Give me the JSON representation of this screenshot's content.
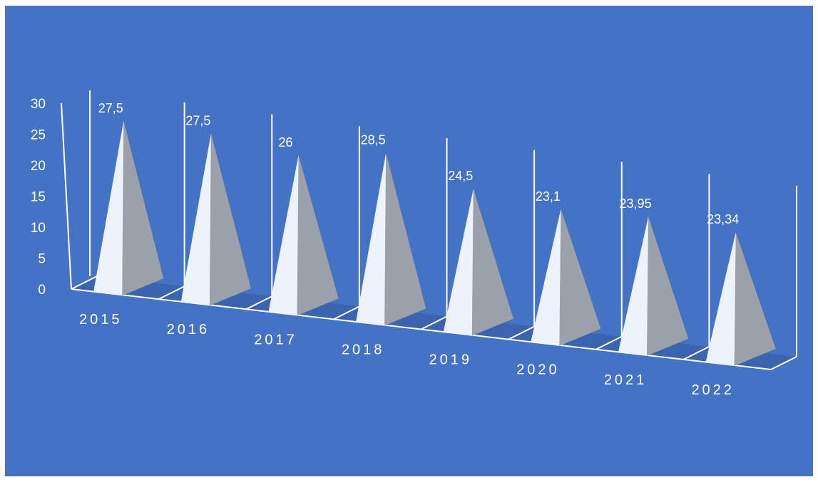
{
  "chart_data": {
    "type": "bar",
    "bar_shape": "3d-pyramid",
    "categories": [
      "2015",
      "2016",
      "2017",
      "2018",
      "2019",
      "2020",
      "2021",
      "2022"
    ],
    "values": [
      27.5,
      27.5,
      26,
      28.5,
      24.5,
      23.1,
      23.95,
      23.34
    ],
    "value_labels": [
      "27,5",
      "27,5",
      "26",
      "28,5",
      "24,5",
      "23,1",
      "23,95",
      "23,34"
    ],
    "y_ticks": [
      "0",
      "5",
      "10",
      "15",
      "20",
      "25",
      "30"
    ],
    "ylim": [
      0,
      30
    ],
    "title": "",
    "xlabel": "",
    "ylabel": "",
    "grid": true,
    "legend": "none",
    "colors": {
      "background": "#4472c4",
      "floor": "#3a64b0",
      "pyramid_lit": "#eef3fb",
      "pyramid_shade": "#9aa1ab",
      "lines": "#ffffff",
      "text": "#ffffff"
    }
  }
}
